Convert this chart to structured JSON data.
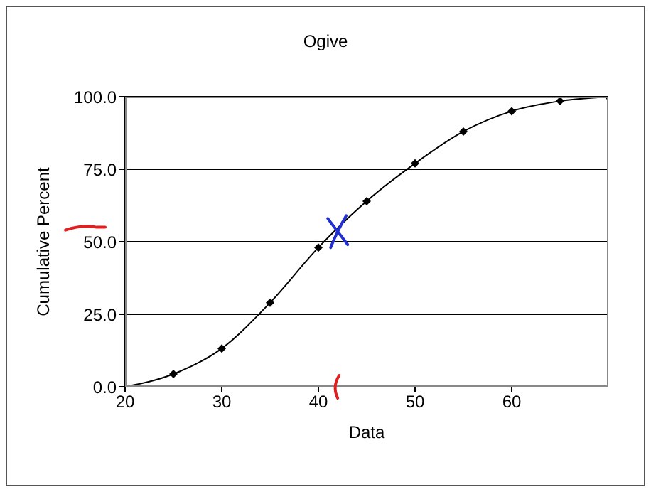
{
  "chart_data": {
    "type": "line",
    "title": "Ogive",
    "xlabel": "Data",
    "ylabel": "Cumulative Percent",
    "x": [
      20,
      25,
      30,
      35,
      40,
      45,
      50,
      55,
      60,
      65,
      70
    ],
    "series": [
      {
        "color": "#000000",
        "values": [
          0,
          4.4,
          13.2,
          29,
          48,
          64,
          77,
          88,
          95,
          98.5,
          100
        ]
      }
    ],
    "xlim": [
      20,
      70
    ],
    "xticks": [
      20,
      30,
      40,
      50,
      60
    ],
    "ylim": [
      0,
      100
    ],
    "yticks": [
      {
        "value": 0,
        "label": "0.0"
      },
      {
        "value": 25,
        "label": "25.0"
      },
      {
        "value": 50,
        "label": "50.0"
      },
      {
        "value": 75,
        "label": "75.0"
      },
      {
        "value": 100,
        "label": "100.0"
      }
    ],
    "grid": "y",
    "legend": false,
    "marker": "diamond",
    "line_style": "solid"
  }
}
